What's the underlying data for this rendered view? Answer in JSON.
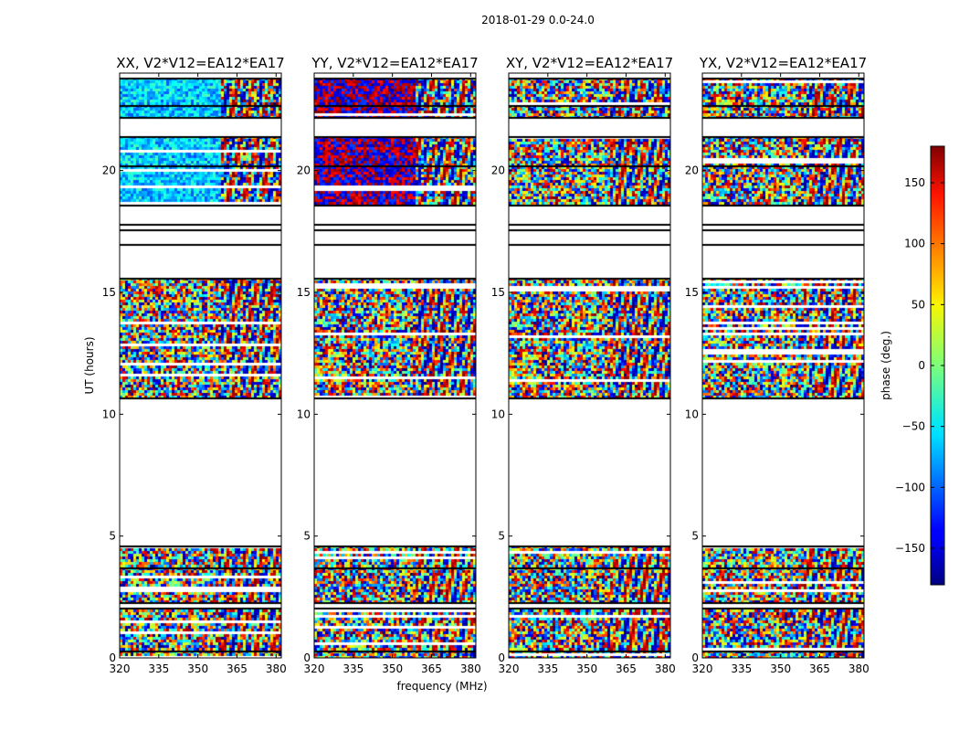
{
  "figure": {
    "suptitle": "2018-01-29 0.0-24.0"
  },
  "chart_data": {
    "type": "heatmap",
    "suptitle": "2018-01-29 0.0-24.0",
    "xlabel": "frequency (MHz)",
    "ylabel": "UT (hours)",
    "xlim": [
      320,
      382
    ],
    "ylim": [
      0,
      24
    ],
    "xticks": [
      320,
      335,
      350,
      365,
      380
    ],
    "yticks": [
      0,
      5,
      10,
      15,
      20
    ],
    "panels": [
      {
        "title": "XX, V2*V12=EA12*EA17",
        "pol": "XX"
      },
      {
        "title": "YY, V2*V12=EA12*EA17",
        "pol": "YY"
      },
      {
        "title": "XY, V2*V12=EA12*EA17",
        "pol": "XY"
      },
      {
        "title": "YX, V2*V12=EA12*EA17",
        "pol": "YX"
      }
    ],
    "data_time_ranges_hours": [
      [
        0,
        2.0
      ],
      [
        2.3,
        4.6
      ],
      [
        10.7,
        15.6
      ],
      [
        18.6,
        21.4
      ],
      [
        22.2,
        23.8
      ]
    ],
    "colorbar": {
      "label": "phase (deg.)",
      "range": [
        -180,
        180
      ],
      "ticks": [
        -150,
        -100,
        -50,
        0,
        50,
        100,
        150
      ],
      "tick_labels": [
        "−150",
        "−100",
        "−50",
        "0",
        "50",
        "100",
        "150"
      ],
      "colormap": "jet"
    }
  }
}
